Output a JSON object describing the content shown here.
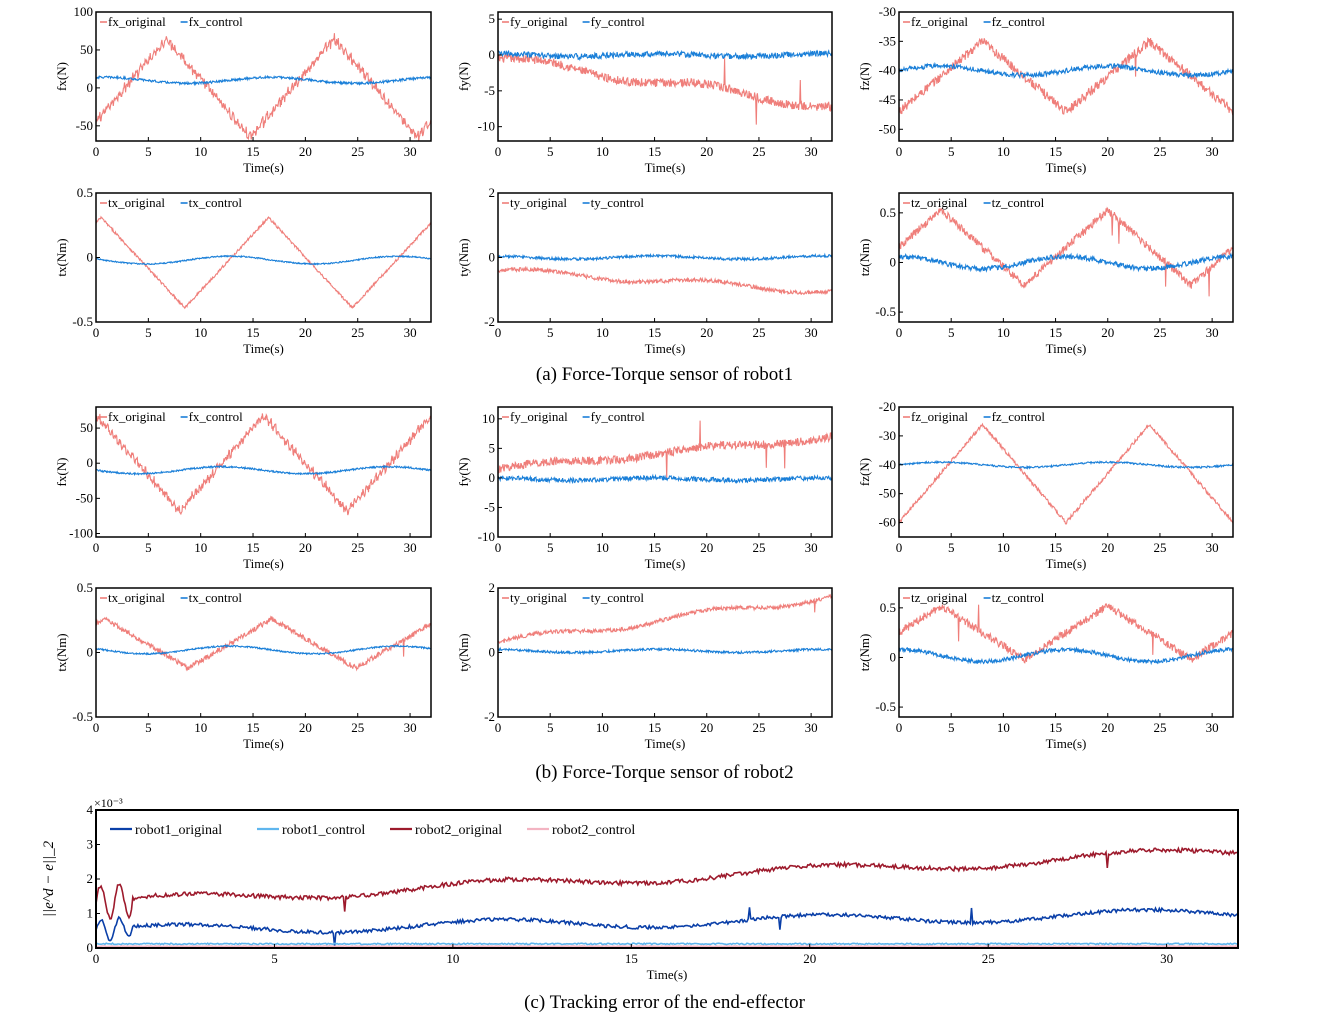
{
  "captions": {
    "a": "(a) Force-Torque sensor of robot1",
    "b": "(b) Force-Torque sensor of robot2",
    "c": "(c) Tracking error of the end-effector"
  },
  "colors": {
    "original": "#ef7e7a",
    "control": "#1a7fd8"
  },
  "chart_data": [
    {
      "id": "r1_fx",
      "type": "line",
      "ylabel": "fx(N)",
      "xlabel": "Time(s)",
      "xlim": [
        0,
        32
      ],
      "ylim": [
        -70,
        100
      ],
      "yticks": [
        100,
        50,
        0,
        -50
      ],
      "xticks": [
        0,
        5,
        10,
        15,
        20,
        25,
        30
      ],
      "series": [
        {
          "name": "fx_original",
          "shape": "tri",
          "amp": 65,
          "offset": 0,
          "period": 16,
          "phase": 0.08,
          "noise": 5,
          "spikes": 0,
          "teeth": 10
        },
        {
          "name": "fx_control",
          "shape": "sin",
          "amp": 4,
          "offset": 10,
          "period": 16,
          "phase": 0.2,
          "noise": 1.5,
          "spikes": 0
        }
      ]
    },
    {
      "id": "r1_fy",
      "type": "line",
      "ylabel": "fy(N)",
      "xlabel": "Time(s)",
      "xlim": [
        0,
        32
      ],
      "ylim": [
        -12,
        6
      ],
      "yticks": [
        5,
        0,
        -5,
        -10
      ],
      "xticks": [
        0,
        5,
        10,
        15,
        20,
        25,
        30
      ],
      "series": [
        {
          "name": "fy_original",
          "shape": "drift",
          "start": -0.5,
          "end": -7.2,
          "amp": 0.6,
          "noise": 0.6,
          "spikes": 3
        },
        {
          "name": "fy_control",
          "shape": "sin",
          "amp": 0.2,
          "offset": 0,
          "period": 16,
          "phase": 0.3,
          "noise": 0.4,
          "spikes": 0
        }
      ]
    },
    {
      "id": "r1_fz",
      "type": "line",
      "ylabel": "fz(N)",
      "xlabel": "Time(s)",
      "xlim": [
        0,
        32
      ],
      "ylim": [
        -52,
        -30
      ],
      "yticks": [
        -30,
        -35,
        -40,
        -45,
        -50
      ],
      "xticks": [
        0,
        5,
        10,
        15,
        20,
        25,
        30
      ],
      "series": [
        {
          "name": "fz_original",
          "shape": "tri",
          "amp": 6,
          "offset": -41,
          "period": 16,
          "phase": 0.0,
          "noise": 0.8,
          "spikes": 1
        },
        {
          "name": "fz_control",
          "shape": "sin",
          "amp": 0.8,
          "offset": -40,
          "period": 16,
          "phase": 0.0,
          "noise": 0.4,
          "spikes": 0
        }
      ]
    },
    {
      "id": "r1_tx",
      "type": "line",
      "ylabel": "tx(Nm)",
      "xlabel": "Time(s)",
      "xlim": [
        0,
        32
      ],
      "ylim": [
        -0.5,
        0.5
      ],
      "yticks": [
        0.5,
        0,
        -0.5
      ],
      "xticks": [
        0,
        5,
        10,
        15,
        20,
        25,
        30
      ],
      "series": [
        {
          "name": "tx_original",
          "shape": "tri",
          "amp": 0.35,
          "offset": -0.04,
          "period": 16,
          "phase": 0.47,
          "noise": 0.01,
          "spikes": 0
        },
        {
          "name": "tx_control",
          "shape": "sin",
          "amp": 0.03,
          "offset": -0.02,
          "period": 16,
          "phase": 0.45,
          "noise": 0.005,
          "spikes": 0
        }
      ]
    },
    {
      "id": "r1_ty",
      "type": "line",
      "ylabel": "ty(Nm)",
      "xlabel": "Time(s)",
      "xlim": [
        0,
        32
      ],
      "ylim": [
        -2,
        2
      ],
      "yticks": [
        2,
        0,
        -2
      ],
      "xticks": [
        0,
        5,
        10,
        15,
        20,
        25,
        30
      ],
      "series": [
        {
          "name": "ty_original",
          "shape": "drift",
          "start": -0.4,
          "end": -1.05,
          "amp": 0.1,
          "noise": 0.06,
          "spikes": 0
        },
        {
          "name": "ty_control",
          "shape": "sin",
          "amp": 0.05,
          "offset": 0.0,
          "period": 16,
          "phase": 0.3,
          "noise": 0.04,
          "spikes": 0
        }
      ]
    },
    {
      "id": "r1_tz",
      "type": "line",
      "ylabel": "tz(Nm)",
      "xlabel": "Time(s)",
      "xlim": [
        0,
        32
      ],
      "ylim": [
        -0.6,
        0.7
      ],
      "yticks": [
        0.5,
        0,
        -0.5
      ],
      "xticks": [
        0,
        5,
        10,
        15,
        20,
        25,
        30
      ],
      "series": [
        {
          "name": "tz_original",
          "shape": "tri",
          "amp": 0.38,
          "offset": 0.15,
          "period": 16,
          "phase": 0.25,
          "noise": 0.04,
          "spikes": 4
        },
        {
          "name": "tz_control",
          "shape": "sin",
          "amp": 0.06,
          "offset": 0.0,
          "period": 16,
          "phase": 0.25,
          "noise": 0.025,
          "spikes": 0
        }
      ]
    },
    {
      "id": "r2_fx",
      "type": "line",
      "ylabel": "fx(N)",
      "xlabel": "Time(s)",
      "xlim": [
        0,
        32
      ],
      "ylim": [
        -105,
        80
      ],
      "yticks": [
        50,
        0,
        -50,
        -100
      ],
      "xticks": [
        0,
        5,
        10,
        15,
        20,
        25,
        30
      ],
      "series": [
        {
          "name": "fx_original",
          "shape": "tri",
          "amp": 68,
          "offset": 0,
          "period": 16,
          "phase": 0.5,
          "noise": 5,
          "spikes": 0,
          "teeth": 10
        },
        {
          "name": "fx_control",
          "shape": "sin",
          "amp": 5,
          "offset": -10,
          "period": 16,
          "phase": 0.5,
          "noise": 1.2,
          "spikes": 0
        }
      ]
    },
    {
      "id": "r2_fy",
      "type": "line",
      "ylabel": "fy(N)",
      "xlabel": "Time(s)",
      "xlim": [
        0,
        32
      ],
      "ylim": [
        -10,
        12
      ],
      "yticks": [
        10,
        5,
        0,
        -5,
        -10
      ],
      "xticks": [
        0,
        5,
        10,
        15,
        20,
        25,
        30
      ],
      "series": [
        {
          "name": "fy_original",
          "shape": "drift",
          "start": 1.5,
          "end": 7,
          "amp": 0.4,
          "noise": 0.7,
          "spikes": 4
        },
        {
          "name": "fy_control",
          "shape": "sin",
          "amp": 0.2,
          "offset": -0.2,
          "period": 16,
          "phase": 0.3,
          "noise": 0.4,
          "spikes": 0
        }
      ]
    },
    {
      "id": "r2_fz",
      "type": "line",
      "ylabel": "fz(N)",
      "xlabel": "Time(s)",
      "xlim": [
        0,
        32
      ],
      "ylim": [
        -65,
        -20
      ],
      "yticks": [
        -20,
        -30,
        -40,
        -50,
        -60
      ],
      "xticks": [
        0,
        5,
        10,
        15,
        20,
        25,
        30
      ],
      "series": [
        {
          "name": "fz_original",
          "shape": "tri",
          "amp": 17,
          "offset": -43,
          "period": 16,
          "phase": 0.0,
          "noise": 0.6,
          "spikes": 0
        },
        {
          "name": "fz_control",
          "shape": "sin",
          "amp": 0.9,
          "offset": -40,
          "period": 16,
          "phase": 0.0,
          "noise": 0.3,
          "spikes": 0
        }
      ]
    },
    {
      "id": "r2_tx",
      "type": "line",
      "ylabel": "tx(Nm)",
      "xlabel": "Time(s)",
      "xlim": [
        0,
        32
      ],
      "ylim": [
        -0.5,
        0.5
      ],
      "yticks": [
        0.5,
        0,
        -0.5
      ],
      "xticks": [
        0,
        5,
        10,
        15,
        20,
        25,
        30
      ],
      "series": [
        {
          "name": "tx_original",
          "shape": "tri",
          "amp": 0.19,
          "offset": 0.07,
          "period": 16,
          "phase": 0.45,
          "noise": 0.02,
          "spikes": 1
        },
        {
          "name": "tx_control",
          "shape": "sin",
          "amp": 0.03,
          "offset": 0.02,
          "period": 16,
          "phase": 0.45,
          "noise": 0.006,
          "spikes": 0
        }
      ]
    },
    {
      "id": "r2_ty",
      "type": "line",
      "ylabel": "ty(Nm)",
      "xlabel": "Time(s)",
      "xlim": [
        0,
        32
      ],
      "ylim": [
        -2,
        2
      ],
      "yticks": [
        2,
        0,
        -2
      ],
      "xticks": [
        0,
        5,
        10,
        15,
        20,
        25,
        30
      ],
      "series": [
        {
          "name": "ty_original",
          "shape": "drift",
          "start": 0.3,
          "end": 1.75,
          "amp": 0.12,
          "noise": 0.06,
          "spikes": 1
        },
        {
          "name": "ty_control",
          "shape": "sin",
          "amp": 0.05,
          "offset": 0.05,
          "period": 16,
          "phase": 0.3,
          "noise": 0.035,
          "spikes": 0
        }
      ]
    },
    {
      "id": "r2_tz",
      "type": "line",
      "ylabel": "tz(Nm)",
      "xlabel": "Time(s)",
      "xlim": [
        0,
        32
      ],
      "ylim": [
        -0.6,
        0.7
      ],
      "yticks": [
        0.5,
        0,
        -0.5
      ],
      "xticks": [
        0,
        5,
        10,
        15,
        20,
        25,
        30
      ],
      "series": [
        {
          "name": "tz_original",
          "shape": "tri",
          "amp": 0.27,
          "offset": 0.25,
          "period": 16,
          "phase": 0.25,
          "noise": 0.04,
          "spikes": 3
        },
        {
          "name": "tz_control",
          "shape": "sin",
          "amp": 0.06,
          "offset": 0.02,
          "period": 16,
          "phase": 0.25,
          "noise": 0.02,
          "spikes": 0
        }
      ]
    },
    {
      "id": "tracking",
      "type": "line",
      "ylabel": "||e^d − e||_2",
      "xlabel": "Time(s)",
      "xlim": [
        0,
        32
      ],
      "ylim": [
        0,
        4
      ],
      "yticks": [
        4,
        3,
        2,
        1,
        0
      ],
      "xticks": [
        0,
        5,
        10,
        15,
        20,
        25,
        30
      ],
      "yexp": "×10⁻³",
      "series": [
        {
          "name": "robot1_original",
          "color": "#0a3fa8",
          "shape": "track",
          "start": 0.5,
          "end": 1.0,
          "noise": 0.05,
          "spikes": 4
        },
        {
          "name": "robot1_control",
          "color": "#5fb6ee",
          "shape": "flat",
          "offset": 0.12,
          "noise": 0.02,
          "spikes": 0
        },
        {
          "name": "robot2_original",
          "color": "#9d1a2c",
          "shape": "track",
          "start": 1.3,
          "end": 2.8,
          "noise": 0.06,
          "spikes": 2
        },
        {
          "name": "robot2_control",
          "color": "#f3b4c2",
          "shape": "flat",
          "offset": 0.05,
          "noise": 0.01,
          "spikes": 0
        }
      ]
    }
  ]
}
